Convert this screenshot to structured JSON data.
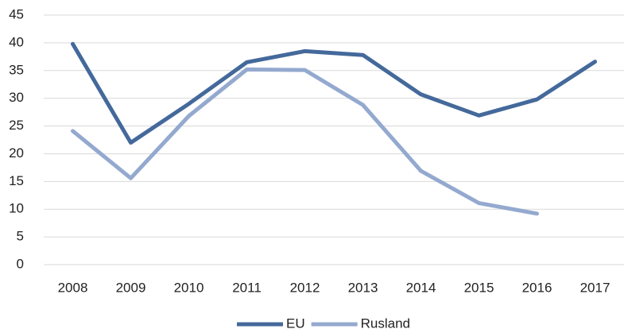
{
  "chart_data": {
    "type": "line",
    "categories": [
      "2008",
      "2009",
      "2010",
      "2011",
      "2012",
      "2013",
      "2014",
      "2015",
      "2016",
      "2017"
    ],
    "series": [
      {
        "name": "EU",
        "color": "#44699b",
        "values": [
          39.8,
          22,
          29,
          36.5,
          38.5,
          37.8,
          30.7,
          26.9,
          29.8,
          36.6
        ]
      },
      {
        "name": "Rusland",
        "color": "#94a9cf",
        "values": [
          24.1,
          15.6,
          26.8,
          35.2,
          35.1,
          28.8,
          16.9,
          11.1,
          9.2,
          null
        ]
      }
    ],
    "ylim": [
      0,
      45
    ],
    "yticks": [
      0,
      5,
      10,
      15,
      20,
      25,
      30,
      35,
      40,
      45
    ],
    "grid": true,
    "legend": "bottom"
  }
}
